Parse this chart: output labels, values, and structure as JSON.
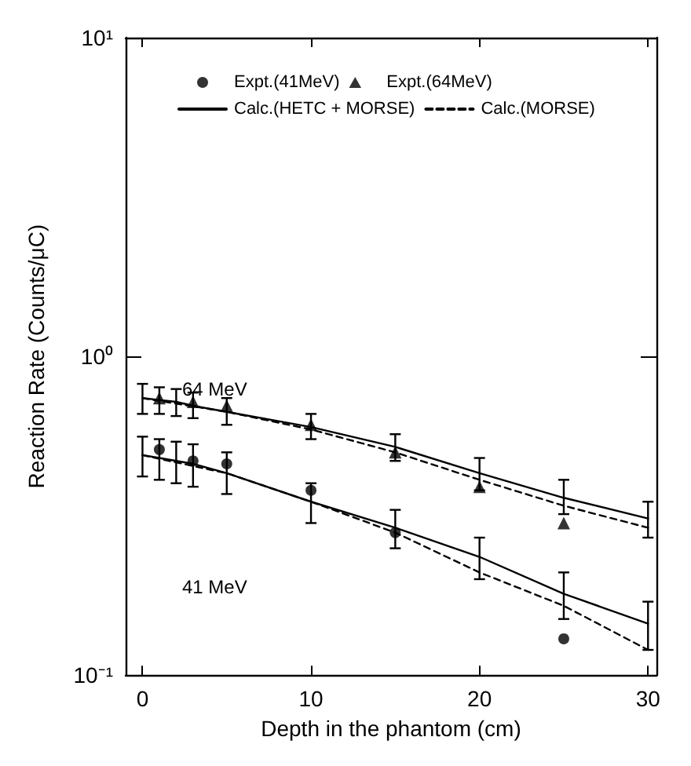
{
  "chart_data": {
    "type": "line",
    "xlabel": "Depth in the phantom (cm)",
    "ylabel": "Reaction Rate (Counts/μC)",
    "xlim": [
      -1,
      30.5
    ],
    "xticks": [
      0,
      10,
      20,
      30
    ],
    "ylim": [
      0.1,
      10
    ],
    "yticks": [
      {
        "value": 0.1,
        "label": "10⁻¹"
      },
      {
        "value": 1,
        "label": "10⁰"
      },
      {
        "value": 10,
        "label": "10¹"
      }
    ],
    "log": "y",
    "legend": "top",
    "grid": false,
    "annotations": [
      "64 MeV",
      "41 MeV"
    ],
    "series": [
      {
        "name": "Expt.(41MeV)",
        "type": "scatter",
        "marker": "circle",
        "color": "#000000",
        "x": [
          1,
          3,
          5,
          10,
          15,
          25
        ],
        "values": [
          0.51,
          0.47,
          0.46,
          0.38,
          0.28,
          0.13
        ]
      },
      {
        "name": "Expt.(64MeV)",
        "type": "scatter",
        "marker": "triangle",
        "color": "#000000",
        "x": [
          1,
          3,
          5,
          10,
          15,
          20,
          25
        ],
        "values": [
          0.74,
          0.72,
          0.7,
          0.61,
          0.5,
          0.39,
          0.3
        ]
      },
      {
        "name": "Calc.(HETC + MORSE)",
        "line_style": "solid",
        "color": "#000000",
        "x": [
          0,
          1,
          2,
          3,
          5,
          10,
          15,
          20,
          25,
          30
        ],
        "values": [
          0.74,
          0.73,
          0.72,
          0.7,
          0.67,
          0.6,
          0.52,
          0.43,
          0.36,
          0.31
        ],
        "errors": [
          [
            0.66,
            0.82
          ],
          [
            0.66,
            0.8
          ],
          [
            0.65,
            0.79
          ],
          [
            0.64,
            0.77
          ],
          [
            0.61,
            0.74
          ],
          [
            0.55,
            0.66
          ],
          [
            0.47,
            0.57
          ],
          [
            0.38,
            0.48
          ],
          [
            0.32,
            0.41
          ],
          [
            0.27,
            0.35
          ]
        ]
      },
      {
        "line_style": "solid",
        "color": "#000000",
        "x": [
          0,
          1,
          2,
          3,
          5,
          10,
          15,
          20,
          25,
          30
        ],
        "values": [
          0.49,
          0.48,
          0.47,
          0.46,
          0.43,
          0.35,
          0.29,
          0.235,
          0.18,
          0.145
        ],
        "errors": [
          [
            0.42,
            0.56
          ],
          [
            0.41,
            0.55
          ],
          [
            0.4,
            0.54
          ],
          [
            0.39,
            0.53
          ],
          [
            0.37,
            0.5
          ],
          [
            0.3,
            0.4
          ],
          [
            0.25,
            0.33
          ],
          [
            0.2,
            0.27
          ],
          [
            0.15,
            0.21
          ],
          [
            0.12,
            0.17
          ]
        ]
      },
      {
        "name": "Calc.(MORSE)",
        "line_style": "dashed",
        "color": "#000000",
        "x": [
          0,
          5,
          10,
          15,
          20,
          25,
          30
        ],
        "values": [
          0.74,
          0.67,
          0.59,
          0.5,
          0.41,
          0.34,
          0.29
        ]
      },
      {
        "line_style": "dashed",
        "color": "#000000",
        "x": [
          0,
          5,
          10,
          15,
          20,
          25,
          30
        ],
        "values": [
          0.49,
          0.43,
          0.35,
          0.28,
          0.21,
          0.165,
          0.12
        ]
      }
    ]
  }
}
